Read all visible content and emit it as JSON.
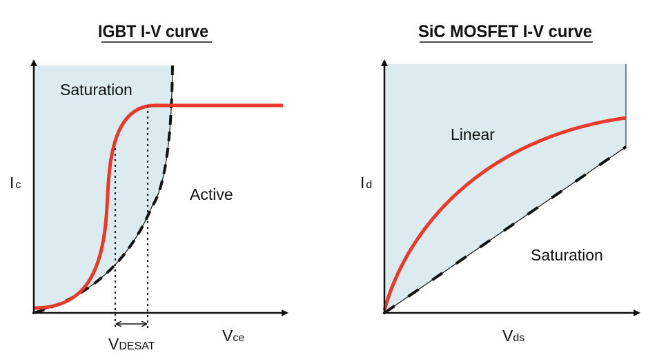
{
  "igbt": {
    "title": "IGBT I-V curve",
    "region_inside": "Saturation",
    "region_outside": "Active",
    "y_label": "I",
    "y_label_sub": "c",
    "x_label": "V",
    "x_label_sub": "ce",
    "marker_label": "V",
    "marker_label_sub": "DESAT"
  },
  "sic": {
    "title": "SiC MOSFET  I-V curve",
    "region_inside": "Linear",
    "region_outside": "Saturation",
    "y_label": "I",
    "y_label_sub": "d",
    "x_label": "V",
    "x_label_sub": "ds"
  },
  "colors": {
    "fill": "#dbebef",
    "curve": "#e8392a",
    "axis": "#111111"
  }
}
